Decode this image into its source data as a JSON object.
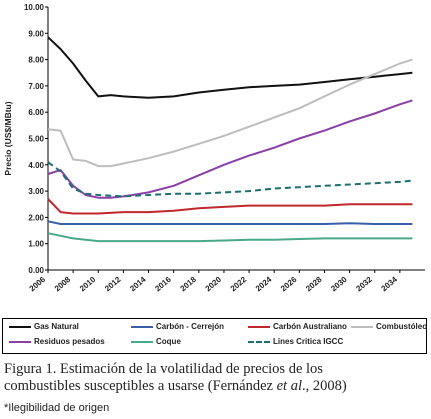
{
  "chart_data": {
    "type": "line",
    "ylabel": "Precio (US$/MBtu)",
    "xlabel": "",
    "ylim": [
      0,
      10
    ],
    "xlim": [
      2006,
      2036
    ],
    "yticks": [
      "0.00",
      "1.00",
      "2.00",
      "3.00",
      "4.00",
      "5.00",
      "6.00",
      "7.00",
      "8.00",
      "9.00",
      "10.00"
    ],
    "xticks": [
      "2006",
      "2008",
      "2010",
      "2012",
      "2014",
      "2016",
      "2018",
      "2020",
      "2022",
      "2024",
      "2026",
      "2028",
      "2030",
      "2032",
      "2034"
    ],
    "grid": false,
    "legend_position": "bottom",
    "series": [
      {
        "name": "Gas Natural",
        "color": "#111111",
        "dash": "solid",
        "x": [
          2006,
          2007,
          2008,
          2009,
          2010,
          2011,
          2012,
          2014,
          2016,
          2018,
          2020,
          2022,
          2024,
          2026,
          2028,
          2030,
          2032,
          2034,
          2035
        ],
        "y": [
          8.85,
          8.4,
          7.85,
          7.2,
          6.6,
          6.65,
          6.6,
          6.55,
          6.6,
          6.75,
          6.85,
          6.95,
          7.0,
          7.05,
          7.15,
          7.25,
          7.35,
          7.45,
          7.5
        ]
      },
      {
        "name": "Carbón - Cerrejón",
        "color": "#3a5fa8",
        "dash": "solid",
        "x": [
          2006,
          2007,
          2008,
          2010,
          2012,
          2014,
          2016,
          2018,
          2020,
          2022,
          2024,
          2026,
          2028,
          2030,
          2032,
          2034,
          2035
        ],
        "y": [
          1.85,
          1.75,
          1.75,
          1.75,
          1.75,
          1.75,
          1.75,
          1.75,
          1.75,
          1.75,
          1.75,
          1.75,
          1.75,
          1.78,
          1.75,
          1.75,
          1.75
        ]
      },
      {
        "name": "Carbón Australiano",
        "color": "#c0282d",
        "dash": "solid",
        "x": [
          2006,
          2007,
          2008,
          2010,
          2012,
          2014,
          2016,
          2018,
          2020,
          2022,
          2024,
          2026,
          2028,
          2030,
          2032,
          2034,
          2035
        ],
        "y": [
          2.7,
          2.2,
          2.15,
          2.15,
          2.2,
          2.2,
          2.25,
          2.35,
          2.4,
          2.45,
          2.45,
          2.45,
          2.45,
          2.5,
          2.5,
          2.5,
          2.5
        ]
      },
      {
        "name": "Combustóleo",
        "color": "#bdbdbd",
        "dash": "solid",
        "x": [
          2006,
          2007,
          2008,
          2009,
          2010,
          2011,
          2012,
          2014,
          2016,
          2018,
          2020,
          2022,
          2024,
          2026,
          2028,
          2030,
          2032,
          2034,
          2035
        ],
        "y": [
          5.35,
          5.3,
          4.2,
          4.15,
          3.95,
          3.95,
          4.05,
          4.25,
          4.5,
          4.8,
          5.1,
          5.45,
          5.8,
          6.15,
          6.6,
          7.05,
          7.45,
          7.85,
          8.0
        ]
      },
      {
        "name": "Residuos pesados",
        "color": "#8a3fa6",
        "dash": "solid",
        "x": [
          2006,
          2007,
          2008,
          2009,
          2010,
          2011,
          2012,
          2014,
          2016,
          2018,
          2020,
          2022,
          2024,
          2026,
          2028,
          2030,
          2032,
          2034,
          2035
        ],
        "y": [
          3.65,
          3.8,
          3.2,
          2.85,
          2.75,
          2.75,
          2.8,
          2.95,
          3.2,
          3.6,
          4.0,
          4.35,
          4.65,
          5.0,
          5.3,
          5.65,
          5.95,
          6.3,
          6.45
        ]
      },
      {
        "name": "Coque",
        "color": "#4aa88a",
        "dash": "solid",
        "x": [
          2006,
          2007,
          2008,
          2009,
          2010,
          2012,
          2014,
          2016,
          2018,
          2020,
          2022,
          2024,
          2026,
          2028,
          2030,
          2032,
          2034,
          2035
        ],
        "y": [
          1.4,
          1.3,
          1.2,
          1.15,
          1.1,
          1.1,
          1.1,
          1.1,
          1.1,
          1.12,
          1.15,
          1.15,
          1.18,
          1.2,
          1.2,
          1.2,
          1.2,
          1.2
        ]
      },
      {
        "name": "Lines Critica IGCC",
        "color": "#1b6f72",
        "dash": "dashed",
        "x": [
          2006,
          2007,
          2008,
          2009,
          2010,
          2012,
          2014,
          2016,
          2018,
          2020,
          2022,
          2024,
          2026,
          2028,
          2030,
          2032,
          2034,
          2035
        ],
        "y": [
          4.1,
          3.75,
          3.1,
          2.9,
          2.85,
          2.8,
          2.85,
          2.9,
          2.9,
          2.95,
          3.0,
          3.1,
          3.15,
          3.2,
          3.25,
          3.3,
          3.35,
          3.4
        ]
      }
    ]
  },
  "caption": {
    "line1": "Figura 1. Estimación de la volatilidad de precios de los",
    "line2_a": "combustibles susceptibles a usarse (Fernández ",
    "line2_em": "et al",
    "line2_b": "., 2008)"
  },
  "note": "*Ilegibilidad de origen"
}
